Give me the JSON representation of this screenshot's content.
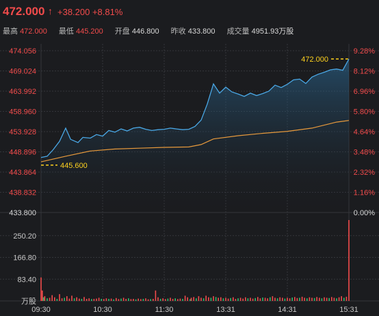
{
  "header": {
    "last_price": "472.000",
    "arrow": "↑",
    "change": "+38.200 +8.81%",
    "stats": [
      {
        "label": "最高",
        "value": "472.000",
        "tone": "up"
      },
      {
        "label": "最低",
        "value": "445.200",
        "tone": "up"
      },
      {
        "label": "开盘",
        "value": "446.800",
        "tone": "neutral"
      },
      {
        "label": "昨收",
        "value": "433.800",
        "tone": "neutral"
      },
      {
        "label": "成交量",
        "value": "4951.93万股",
        "tone": "neutral"
      }
    ]
  },
  "colors": {
    "background": "#1b1c1f",
    "up": "#f24b4b",
    "down": "#2ebd6e",
    "price_line": "#4aa8e6",
    "avg_line": "#e89a3c",
    "marker": "#ffd21f",
    "grid": "#34363b",
    "neutral_text": "#d8d8d8"
  },
  "chart_data": {
    "type": "line",
    "price_axis": {
      "ylim": [
        433.8,
        474.056
      ],
      "left_ticks": [
        "474.056",
        "469.024",
        "463.992",
        "458.960",
        "453.928",
        "448.896",
        "443.864",
        "438.832",
        "433.800"
      ],
      "right_ticks": [
        "9.28%",
        "8.12%",
        "6.96%",
        "5.80%",
        "4.64%",
        "3.48%",
        "2.32%",
        "1.16%",
        "0.00%"
      ]
    },
    "volume_axis": {
      "ylim": [
        0,
        333.6
      ],
      "ticks": [
        "250.20",
        "166.80",
        "83.40"
      ],
      "unit": "万股"
    },
    "x_ticks": [
      "09:30",
      "10:30",
      "11:30",
      "13:31",
      "14:31",
      "15:31"
    ],
    "series": [
      {
        "key": "price",
        "x": [
          0,
          5,
          10,
          15,
          20,
          24,
          30,
          34,
          40,
          45,
          50,
          55,
          60,
          65,
          70,
          75,
          80,
          85,
          90,
          95,
          100,
          105,
          110,
          115,
          120,
          125,
          130,
          135,
          140,
          145,
          150,
          155,
          160,
          165,
          170,
          175,
          180,
          185,
          190,
          195,
          200,
          205,
          210,
          215,
          220,
          225,
          230,
          235,
          240,
          245,
          250
        ],
        "values": [
          447.5,
          447.8,
          449.5,
          451.5,
          454.8,
          452.0,
          451.2,
          452.5,
          452.3,
          453.2,
          452.8,
          454.2,
          453.8,
          454.6,
          454.1,
          454.8,
          455.0,
          454.5,
          454.2,
          454.4,
          454.5,
          454.8,
          454.6,
          454.4,
          454.5,
          455.2,
          456.8,
          460.8,
          465.8,
          463.5,
          465.0,
          463.8,
          463.3,
          462.7,
          463.5,
          462.9,
          463.4,
          464.0,
          465.5,
          464.9,
          465.7,
          466.8,
          467.0,
          465.9,
          467.5,
          468.2,
          468.7,
          469.3,
          469.5,
          469.2,
          472.0
        ]
      },
      {
        "key": "average",
        "x": [
          0,
          20,
          40,
          60,
          80,
          100,
          120,
          130,
          135,
          140,
          160,
          180,
          200,
          220,
          240,
          250
        ],
        "values": [
          446.4,
          447.8,
          449.1,
          449.6,
          449.8,
          450.0,
          450.1,
          450.7,
          451.4,
          452.1,
          452.9,
          453.5,
          454.0,
          454.8,
          456.3,
          456.7
        ]
      }
    ],
    "annotations": [
      {
        "label": "445.600",
        "x": 0,
        "y": 445.6
      },
      {
        "label": "472.000",
        "x": 250,
        "y": 472.0
      }
    ],
    "volume": [
      {
        "x": 0,
        "value": 90,
        "dir": "up"
      },
      {
        "x": 1,
        "value": 40,
        "dir": "up"
      },
      {
        "x": 2,
        "value": 14,
        "dir": "down"
      },
      {
        "x": 3,
        "value": 18,
        "dir": "up"
      },
      {
        "x": 5,
        "value": 10,
        "dir": "down"
      },
      {
        "x": 7,
        "value": 12,
        "dir": "up"
      },
      {
        "x": 9,
        "value": 22,
        "dir": "up"
      },
      {
        "x": 11,
        "value": 14,
        "dir": "up"
      },
      {
        "x": 13,
        "value": 8,
        "dir": "down"
      },
      {
        "x": 15,
        "value": 26,
        "dir": "up"
      },
      {
        "x": 17,
        "value": 10,
        "dir": "up"
      },
      {
        "x": 19,
        "value": 12,
        "dir": "down"
      },
      {
        "x": 21,
        "value": 18,
        "dir": "up"
      },
      {
        "x": 23,
        "value": 9,
        "dir": "up"
      },
      {
        "x": 25,
        "value": 20,
        "dir": "up"
      },
      {
        "x": 27,
        "value": 10,
        "dir": "down"
      },
      {
        "x": 29,
        "value": 14,
        "dir": "up"
      },
      {
        "x": 31,
        "value": 9,
        "dir": "up"
      },
      {
        "x": 33,
        "value": 8,
        "dir": "down"
      },
      {
        "x": 35,
        "value": 15,
        "dir": "up"
      },
      {
        "x": 37,
        "value": 8,
        "dir": "up"
      },
      {
        "x": 39,
        "value": 10,
        "dir": "up"
      },
      {
        "x": 41,
        "value": 7,
        "dir": "down"
      },
      {
        "x": 43,
        "value": 8,
        "dir": "up"
      },
      {
        "x": 45,
        "value": 9,
        "dir": "up"
      },
      {
        "x": 47,
        "value": 12,
        "dir": "up"
      },
      {
        "x": 49,
        "value": 8,
        "dir": "down"
      },
      {
        "x": 51,
        "value": 7,
        "dir": "up"
      },
      {
        "x": 53,
        "value": 10,
        "dir": "up"
      },
      {
        "x": 55,
        "value": 8,
        "dir": "down"
      },
      {
        "x": 57,
        "value": 9,
        "dir": "up"
      },
      {
        "x": 59,
        "value": 6,
        "dir": "down"
      },
      {
        "x": 61,
        "value": 11,
        "dir": "up"
      },
      {
        "x": 63,
        "value": 7,
        "dir": "up"
      },
      {
        "x": 65,
        "value": 9,
        "dir": "down"
      },
      {
        "x": 67,
        "value": 12,
        "dir": "up"
      },
      {
        "x": 69,
        "value": 8,
        "dir": "up"
      },
      {
        "x": 71,
        "value": 10,
        "dir": "down"
      },
      {
        "x": 73,
        "value": 7,
        "dir": "up"
      },
      {
        "x": 75,
        "value": 8,
        "dir": "up"
      },
      {
        "x": 77,
        "value": 6,
        "dir": "down"
      },
      {
        "x": 79,
        "value": 9,
        "dir": "up"
      },
      {
        "x": 81,
        "value": 7,
        "dir": "up"
      },
      {
        "x": 83,
        "value": 8,
        "dir": "down"
      },
      {
        "x": 85,
        "value": 10,
        "dir": "up"
      },
      {
        "x": 87,
        "value": 6,
        "dir": "up"
      },
      {
        "x": 89,
        "value": 7,
        "dir": "down"
      },
      {
        "x": 91,
        "value": 8,
        "dir": "up"
      },
      {
        "x": 93,
        "value": 40,
        "dir": "up"
      },
      {
        "x": 95,
        "value": 14,
        "dir": "up"
      },
      {
        "x": 97,
        "value": 8,
        "dir": "down"
      },
      {
        "x": 99,
        "value": 10,
        "dir": "up"
      },
      {
        "x": 101,
        "value": 7,
        "dir": "up"
      },
      {
        "x": 103,
        "value": 9,
        "dir": "down"
      },
      {
        "x": 105,
        "value": 12,
        "dir": "up"
      },
      {
        "x": 107,
        "value": 8,
        "dir": "up"
      },
      {
        "x": 109,
        "value": 10,
        "dir": "down"
      },
      {
        "x": 111,
        "value": 7,
        "dir": "up"
      },
      {
        "x": 113,
        "value": 9,
        "dir": "up"
      },
      {
        "x": 115,
        "value": 8,
        "dir": "down"
      },
      {
        "x": 117,
        "value": 20,
        "dir": "up"
      },
      {
        "x": 119,
        "value": 14,
        "dir": "up"
      },
      {
        "x": 121,
        "value": 7,
        "dir": "down"
      },
      {
        "x": 122,
        "value": 12,
        "dir": "up"
      },
      {
        "x": 124,
        "value": 15,
        "dir": "up"
      },
      {
        "x": 126,
        "value": 10,
        "dir": "down"
      },
      {
        "x": 128,
        "value": 18,
        "dir": "up"
      },
      {
        "x": 130,
        "value": 12,
        "dir": "up"
      },
      {
        "x": 132,
        "value": 10,
        "dir": "down"
      },
      {
        "x": 134,
        "value": 20,
        "dir": "up"
      },
      {
        "x": 136,
        "value": 14,
        "dir": "up"
      },
      {
        "x": 138,
        "value": 12,
        "dir": "down"
      },
      {
        "x": 140,
        "value": 18,
        "dir": "up"
      },
      {
        "x": 142,
        "value": 15,
        "dir": "down"
      },
      {
        "x": 144,
        "value": 12,
        "dir": "up"
      },
      {
        "x": 146,
        "value": 14,
        "dir": "up"
      },
      {
        "x": 148,
        "value": 10,
        "dir": "down"
      },
      {
        "x": 150,
        "value": 12,
        "dir": "up"
      },
      {
        "x": 152,
        "value": 9,
        "dir": "up"
      },
      {
        "x": 154,
        "value": 11,
        "dir": "down"
      },
      {
        "x": 156,
        "value": 14,
        "dir": "up"
      },
      {
        "x": 158,
        "value": 8,
        "dir": "up"
      },
      {
        "x": 160,
        "value": 10,
        "dir": "down"
      },
      {
        "x": 162,
        "value": 12,
        "dir": "up"
      },
      {
        "x": 164,
        "value": 9,
        "dir": "up"
      },
      {
        "x": 166,
        "value": 14,
        "dir": "up"
      },
      {
        "x": 168,
        "value": 10,
        "dir": "down"
      },
      {
        "x": 170,
        "value": 12,
        "dir": "up"
      },
      {
        "x": 172,
        "value": 9,
        "dir": "up"
      },
      {
        "x": 174,
        "value": 11,
        "dir": "down"
      },
      {
        "x": 176,
        "value": 15,
        "dir": "up"
      },
      {
        "x": 178,
        "value": 10,
        "dir": "up"
      },
      {
        "x": 180,
        "value": 13,
        "dir": "down"
      },
      {
        "x": 182,
        "value": 12,
        "dir": "up"
      },
      {
        "x": 184,
        "value": 10,
        "dir": "up"
      },
      {
        "x": 186,
        "value": 14,
        "dir": "down"
      },
      {
        "x": 188,
        "value": 18,
        "dir": "up"
      },
      {
        "x": 190,
        "value": 12,
        "dir": "up"
      },
      {
        "x": 192,
        "value": 10,
        "dir": "down"
      },
      {
        "x": 194,
        "value": 14,
        "dir": "up"
      },
      {
        "x": 196,
        "value": 12,
        "dir": "up"
      },
      {
        "x": 198,
        "value": 9,
        "dir": "down"
      },
      {
        "x": 200,
        "value": 12,
        "dir": "up"
      },
      {
        "x": 202,
        "value": 10,
        "dir": "up"
      },
      {
        "x": 204,
        "value": 13,
        "dir": "down"
      },
      {
        "x": 206,
        "value": 15,
        "dir": "up"
      },
      {
        "x": 208,
        "value": 11,
        "dir": "up"
      },
      {
        "x": 210,
        "value": 12,
        "dir": "down"
      },
      {
        "x": 212,
        "value": 16,
        "dir": "up"
      },
      {
        "x": 214,
        "value": 12,
        "dir": "up"
      },
      {
        "x": 216,
        "value": 10,
        "dir": "down"
      },
      {
        "x": 218,
        "value": 14,
        "dir": "up"
      },
      {
        "x": 220,
        "value": 12,
        "dir": "up"
      },
      {
        "x": 222,
        "value": 11,
        "dir": "down"
      },
      {
        "x": 224,
        "value": 15,
        "dir": "up"
      },
      {
        "x": 226,
        "value": 12,
        "dir": "up"
      },
      {
        "x": 228,
        "value": 10,
        "dir": "down"
      },
      {
        "x": 230,
        "value": 14,
        "dir": "up"
      },
      {
        "x": 232,
        "value": 12,
        "dir": "up"
      },
      {
        "x": 234,
        "value": 11,
        "dir": "down"
      },
      {
        "x": 236,
        "value": 15,
        "dir": "up"
      },
      {
        "x": 238,
        "value": 12,
        "dir": "up"
      },
      {
        "x": 240,
        "value": 10,
        "dir": "down"
      },
      {
        "x": 242,
        "value": 14,
        "dir": "up"
      },
      {
        "x": 244,
        "value": 18,
        "dir": "up"
      },
      {
        "x": 246,
        "value": 12,
        "dir": "down"
      },
      {
        "x": 248,
        "value": 16,
        "dir": "up"
      },
      {
        "x": 250,
        "value": 310,
        "dir": "up"
      }
    ]
  }
}
